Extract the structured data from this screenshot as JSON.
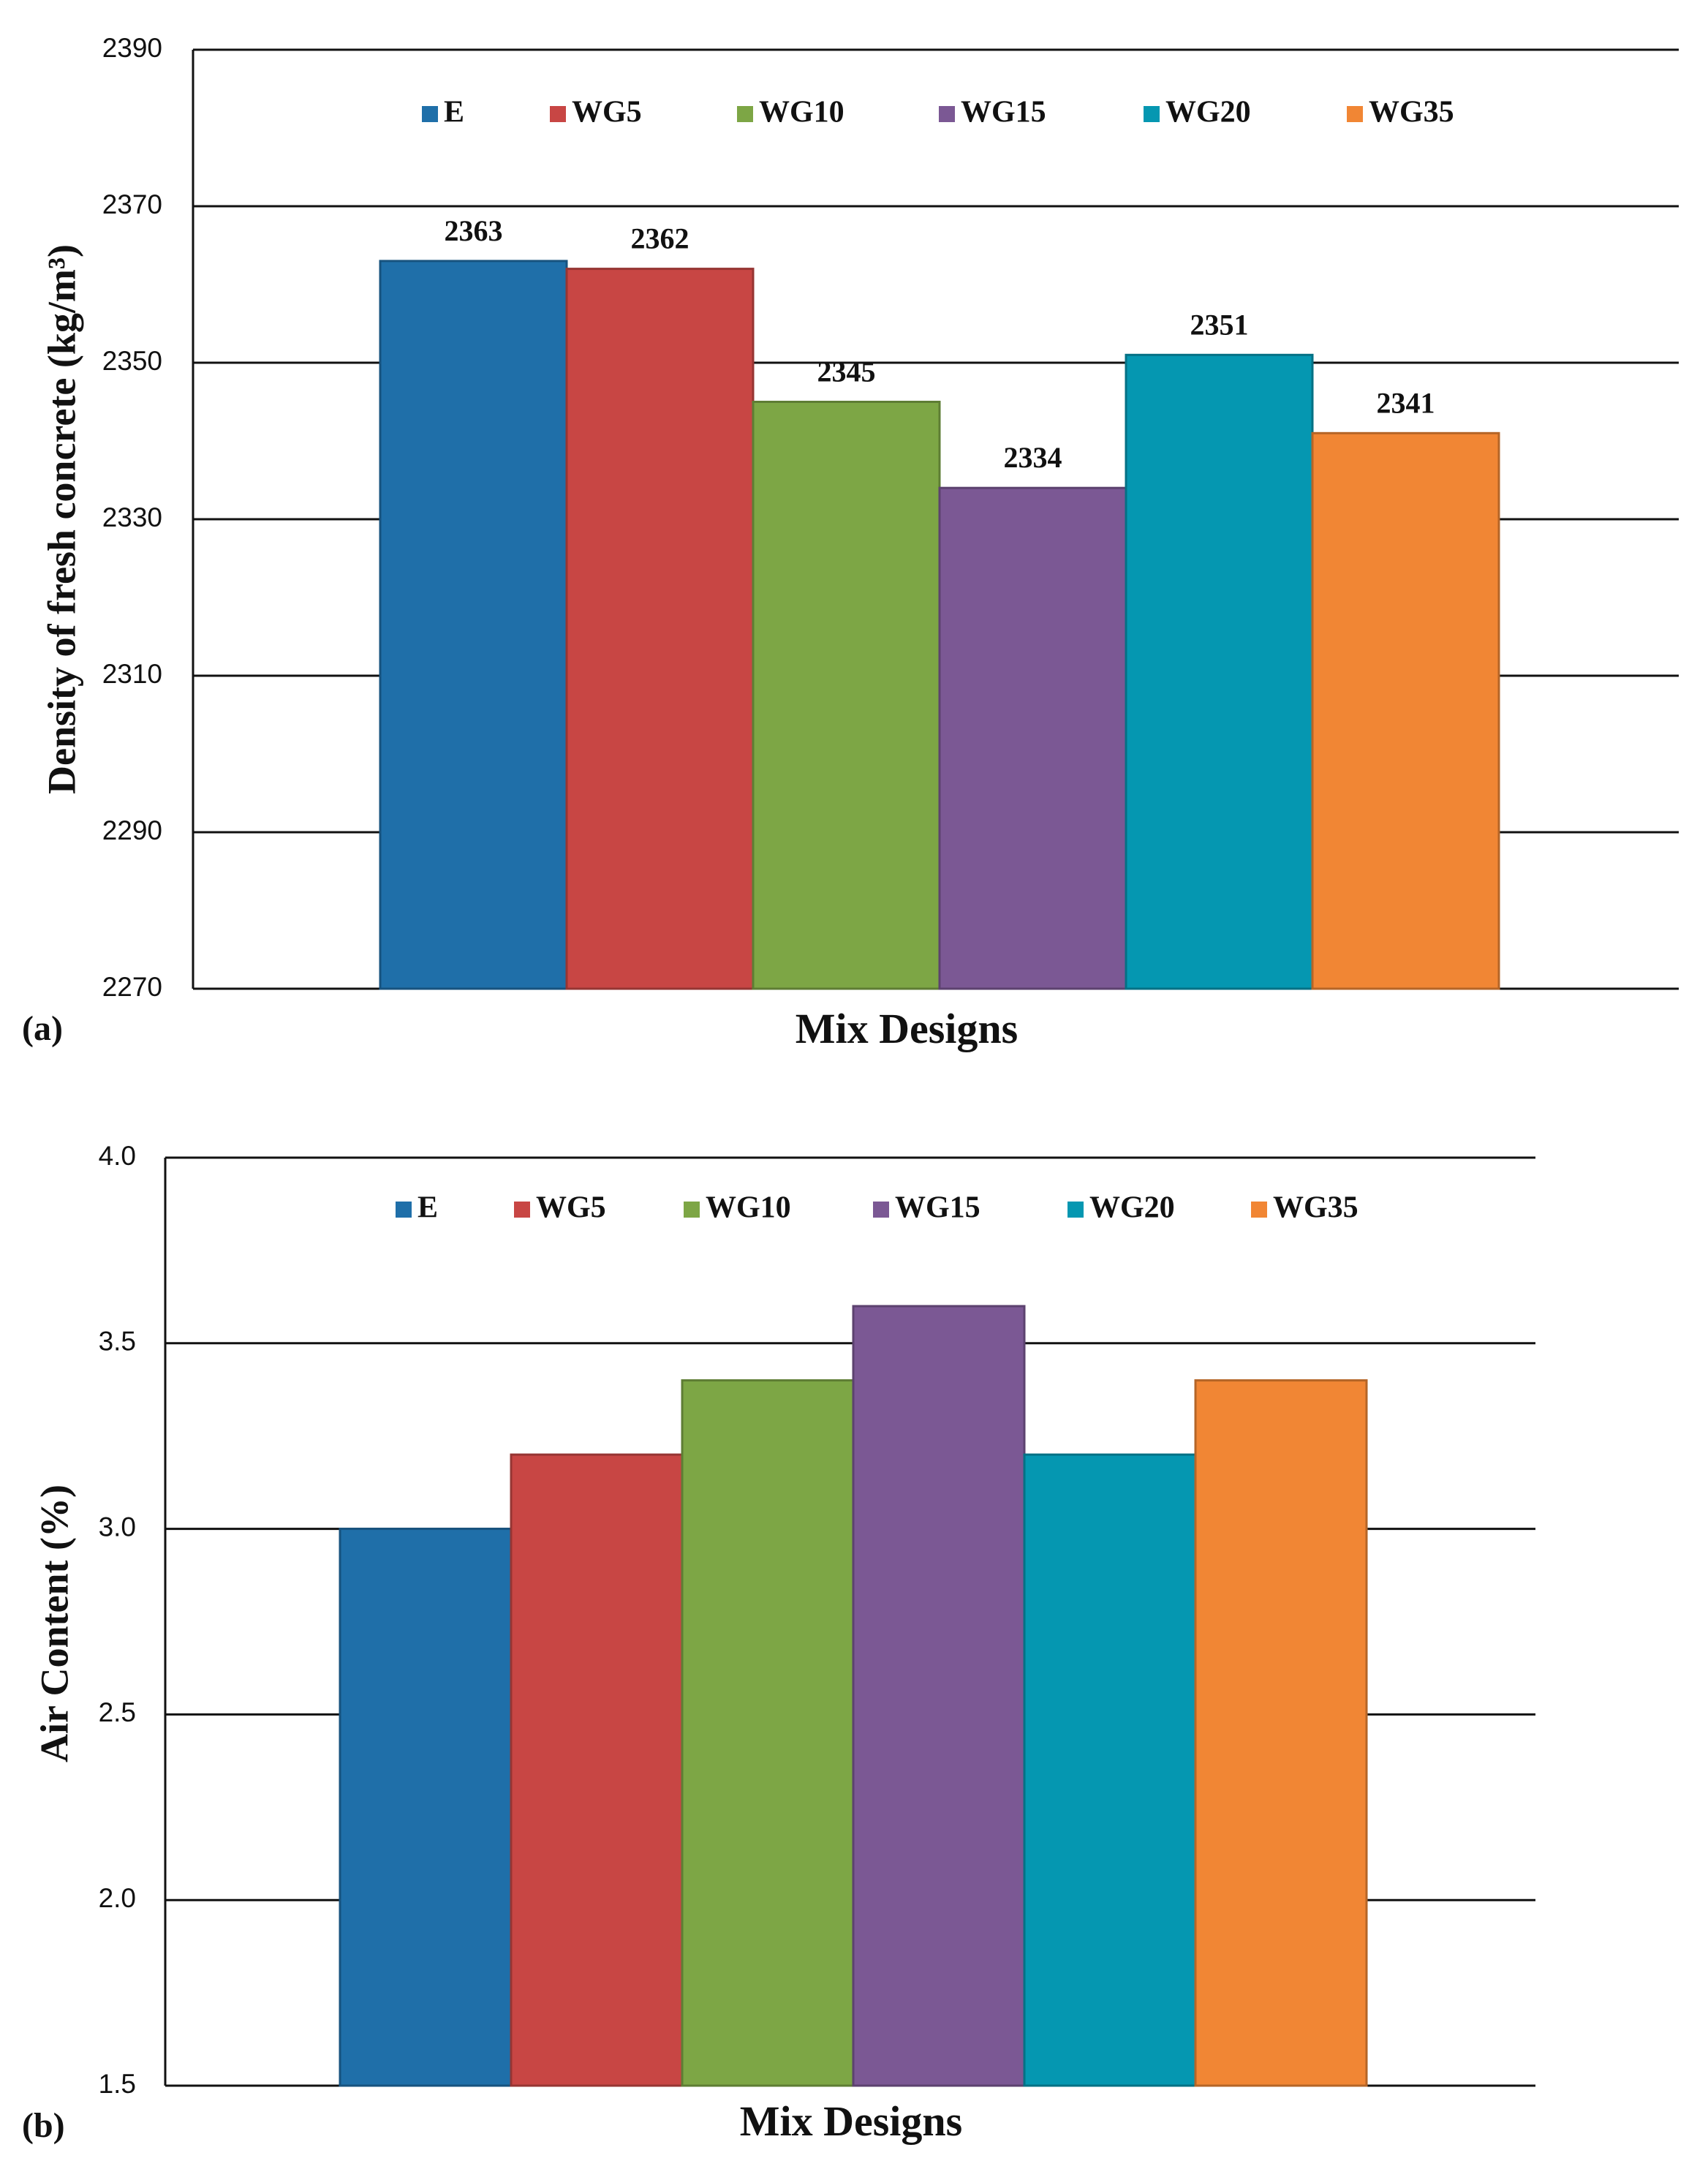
{
  "colors": {
    "E": "#1F6FA9",
    "WG5": "#C84644",
    "WG10": "#7DA645",
    "WG15": "#7B5894",
    "WG20": "#0597B1",
    "WG35": "#F18634"
  },
  "chart_data": [
    {
      "panel": "(a)",
      "type": "bar",
      "title": "",
      "xlabel": "Mix Designs",
      "ylabel": "Density  of fresh concrete (kg/m³)",
      "ylim": [
        2270,
        2390
      ],
      "yticks": [
        "2270",
        "2290",
        "2310",
        "2330",
        "2350",
        "2370",
        "2390"
      ],
      "grid": true,
      "legend_position": "top",
      "data_labels": true,
      "series": [
        {
          "name": "E",
          "values": [
            2363
          ]
        },
        {
          "name": "WG5",
          "values": [
            2362
          ]
        },
        {
          "name": "WG10",
          "values": [
            2345
          ]
        },
        {
          "name": "WG15",
          "values": [
            2334
          ]
        },
        {
          "name": "WG20",
          "values": [
            2351
          ]
        },
        {
          "name": "WG35",
          "values": [
            2341
          ]
        }
      ]
    },
    {
      "panel": "(b)",
      "type": "bar",
      "title": "",
      "xlabel": "Mix Designs",
      "ylabel": "Air Content (%)",
      "ylim": [
        1.5,
        4.0
      ],
      "yticks": [
        "1.5",
        "2.0",
        "2.5",
        "3.0",
        "3.5",
        "4.0"
      ],
      "grid": true,
      "legend_position": "top",
      "data_labels": false,
      "series": [
        {
          "name": "E",
          "values": [
            3.0
          ]
        },
        {
          "name": "WG5",
          "values": [
            3.2
          ]
        },
        {
          "name": "WG10",
          "values": [
            3.4
          ]
        },
        {
          "name": "WG15",
          "values": [
            3.6
          ]
        },
        {
          "name": "WG20",
          "values": [
            3.2
          ]
        },
        {
          "name": "WG35",
          "values": [
            3.4
          ]
        }
      ]
    }
  ]
}
